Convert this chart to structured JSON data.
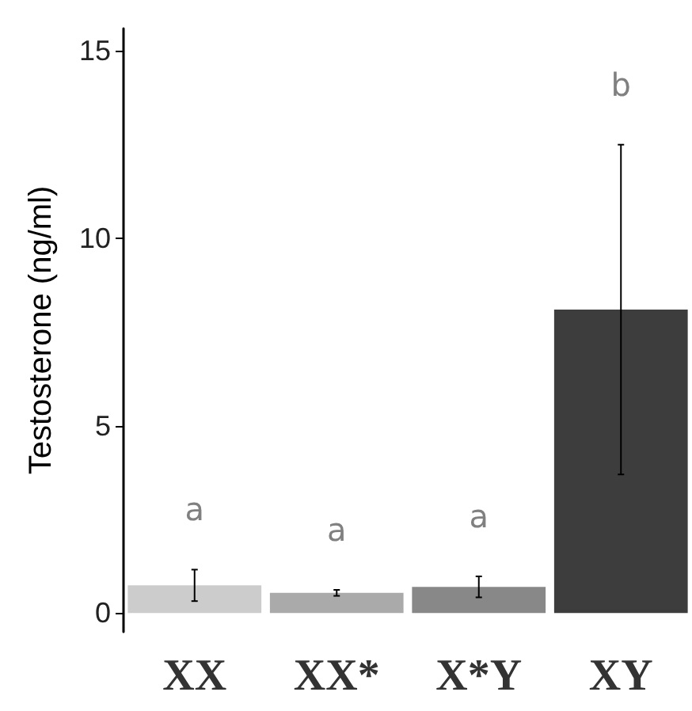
{
  "chart_data": {
    "type": "bar",
    "ylabel": "Testosterone (ng/ml)",
    "categories": [
      "XX",
      "XX*",
      "X*Y",
      "XY"
    ],
    "values": [
      0.74,
      0.54,
      0.7,
      8.1
    ],
    "colors": [
      "#cccccc",
      "#aaaaaa",
      "#888888",
      "#3d3d3d"
    ],
    "errors": [
      0.42,
      0.08,
      0.28,
      4.4
    ],
    "ylim": [
      -0.5,
      15.6
    ],
    "yticks": [
      0,
      5,
      10,
      15
    ],
    "grid": false,
    "annotations": [
      "a",
      "a",
      "a",
      "b"
    ]
  }
}
